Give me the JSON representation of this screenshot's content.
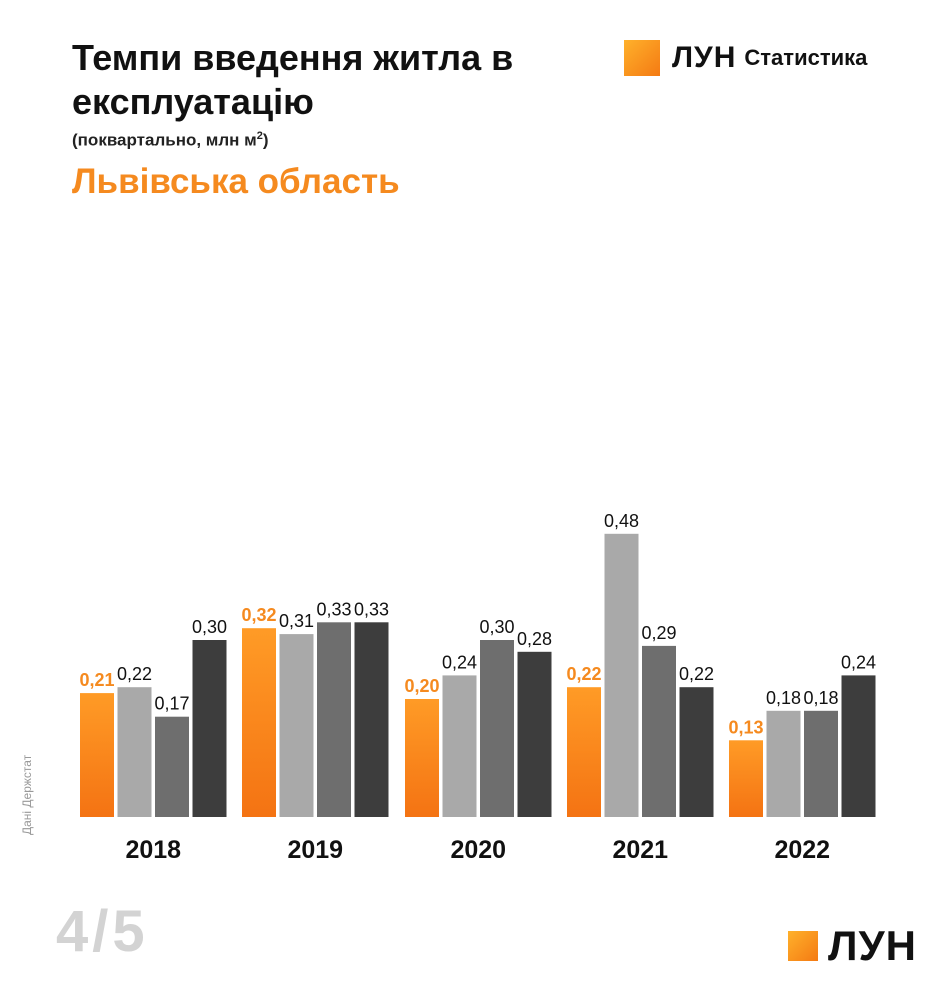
{
  "header": {
    "title": "Темпи введення житла в експлуатацію",
    "subtitle_prefix": "(поквартально, млн м",
    "subtitle_sup": "2",
    "subtitle_suffix": ")",
    "region": "Львівська область"
  },
  "brand": {
    "top_name": "ЛУН",
    "top_suffix": "Статистика",
    "bottom_name": "ЛУН",
    "accent_color": "#f58a1f"
  },
  "source": "Дані Держстат",
  "page": "4/5",
  "colors": {
    "q1": "#f58a1f",
    "q2": "#a9a9a9",
    "q3": "#6e6e6e",
    "q4": "#3d3d3d"
  },
  "chart_data": {
    "type": "bar",
    "categories": [
      "2018",
      "2019",
      "2020",
      "2021",
      "2022"
    ],
    "series": [
      {
        "values": [
          0.21,
          0.32,
          0.2,
          0.22,
          0.13
        ],
        "labels": [
          "0,21",
          "0,32",
          "0,20",
          "0,22",
          "0,13"
        ]
      },
      {
        "values": [
          0.22,
          0.31,
          0.24,
          0.48,
          0.18
        ],
        "labels": [
          "0,22",
          "0,31",
          "0,24",
          "0,48",
          "0,18"
        ]
      },
      {
        "values": [
          0.17,
          0.33,
          0.3,
          0.29,
          0.18
        ],
        "labels": [
          "0,17",
          "0,33",
          "0,30",
          "0,29",
          "0,18"
        ]
      },
      {
        "values": [
          0.3,
          0.33,
          0.28,
          0.22,
          0.24
        ],
        "labels": [
          "0,30",
          "0,33",
          "0,28",
          "0,22",
          "0,24"
        ]
      }
    ],
    "ylim": [
      0,
      0.48
    ],
    "grid": false,
    "legend": "none"
  }
}
